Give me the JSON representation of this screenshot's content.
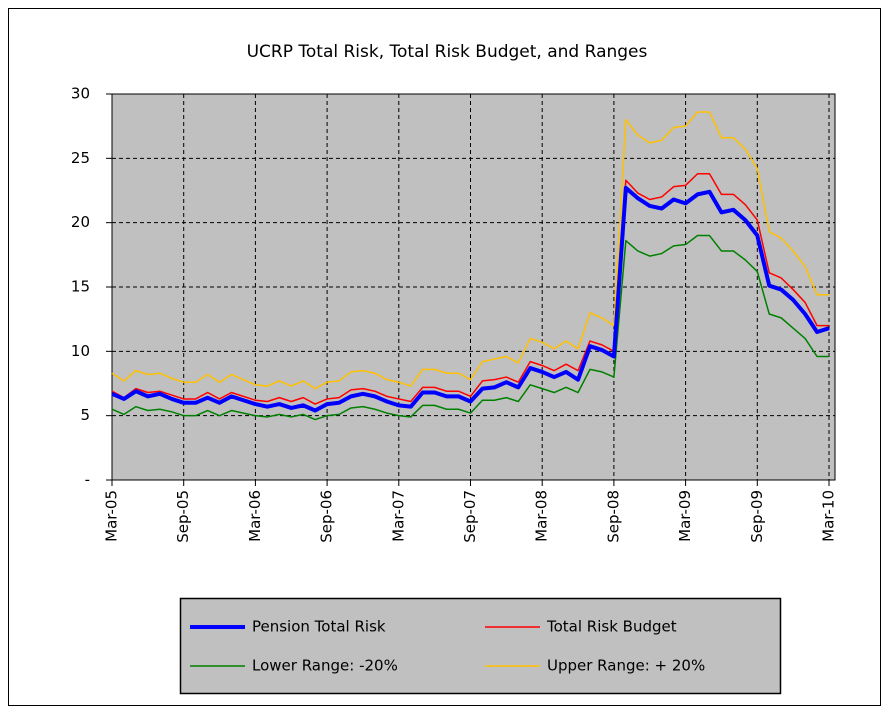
{
  "chart_data": {
    "type": "line",
    "title": "UCRP Total Risk, Total Risk Budget, and Ranges",
    "categories": [
      "Mar-05",
      null,
      null,
      null,
      null,
      null,
      "Sep-05",
      null,
      null,
      null,
      null,
      null,
      "Mar-06",
      null,
      null,
      null,
      null,
      null,
      "Sep-06",
      null,
      null,
      null,
      null,
      null,
      "Mar-07",
      null,
      null,
      null,
      null,
      null,
      "Sep-07",
      null,
      null,
      null,
      null,
      null,
      "Mar-08",
      null,
      null,
      null,
      null,
      null,
      "Sep-08",
      null,
      null,
      null,
      null,
      null,
      "Mar-09",
      null,
      null,
      null,
      null,
      null,
      "Sep-09",
      null,
      null,
      null,
      null,
      null,
      "Mar-10"
    ],
    "series": [
      {
        "name": "Pension Total Risk",
        "color": "#0000ff",
        "width": 4,
        "values": [
          6.7,
          6.3,
          6.9,
          6.5,
          6.7,
          6.3,
          6.0,
          6.0,
          6.4,
          6.0,
          6.5,
          6.2,
          5.9,
          5.7,
          5.9,
          5.6,
          5.8,
          5.4,
          5.9,
          6.0,
          6.5,
          6.7,
          6.5,
          6.1,
          5.8,
          5.7,
          6.8,
          6.8,
          6.5,
          6.5,
          6.1,
          7.1,
          7.2,
          7.6,
          7.2,
          8.7,
          8.4,
          8.0,
          8.4,
          7.8,
          10.4,
          10.1,
          9.6,
          22.7,
          21.9,
          21.3,
          21.1,
          21.8,
          21.5,
          22.2,
          22.4,
          20.8,
          21.0,
          20.2,
          19.0,
          15.1,
          14.8,
          14.0,
          12.9,
          11.5,
          11.8
        ]
      },
      {
        "name": "Total Risk Budget",
        "color": "#ff0000",
        "width": 1.5,
        "values": [
          6.9,
          6.4,
          7.1,
          6.8,
          6.9,
          6.6,
          6.3,
          6.3,
          6.8,
          6.3,
          6.8,
          6.5,
          6.2,
          6.1,
          6.4,
          6.1,
          6.4,
          5.9,
          6.3,
          6.4,
          7.0,
          7.1,
          6.9,
          6.5,
          6.3,
          6.1,
          7.2,
          7.2,
          6.9,
          6.9,
          6.5,
          7.7,
          7.8,
          8.0,
          7.6,
          9.2,
          8.9,
          8.5,
          9.0,
          8.5,
          10.8,
          10.5,
          10.0,
          23.3,
          22.3,
          21.8,
          22.0,
          22.8,
          22.9,
          23.8,
          23.8,
          22.2,
          22.2,
          21.4,
          20.2,
          16.1,
          15.7,
          14.8,
          13.8,
          12.0,
          12.0
        ]
      },
      {
        "name": "Lower Range: -20%",
        "color": "#008000",
        "width": 1.5,
        "values": [
          5.5,
          5.1,
          5.7,
          5.4,
          5.5,
          5.3,
          5.0,
          5.0,
          5.4,
          5.0,
          5.4,
          5.2,
          5.0,
          4.9,
          5.1,
          4.9,
          5.1,
          4.7,
          5.0,
          5.1,
          5.6,
          5.7,
          5.5,
          5.2,
          5.0,
          4.9,
          5.8,
          5.8,
          5.5,
          5.5,
          5.2,
          6.2,
          6.2,
          6.4,
          6.1,
          7.4,
          7.1,
          6.8,
          7.2,
          6.8,
          8.6,
          8.4,
          8.0,
          18.6,
          17.8,
          17.4,
          17.6,
          18.2,
          18.3,
          19.0,
          19.0,
          17.8,
          17.8,
          17.1,
          16.2,
          12.9,
          12.6,
          11.8,
          11.0,
          9.6,
          9.6
        ]
      },
      {
        "name": "Upper Range: + 20%",
        "color": "#ffc000",
        "width": 1.5,
        "values": [
          8.3,
          7.7,
          8.5,
          8.2,
          8.3,
          7.9,
          7.6,
          7.6,
          8.2,
          7.6,
          8.2,
          7.8,
          7.4,
          7.3,
          7.7,
          7.3,
          7.7,
          7.1,
          7.6,
          7.7,
          8.4,
          8.5,
          8.3,
          7.8,
          7.6,
          7.3,
          8.6,
          8.6,
          8.3,
          8.3,
          7.8,
          9.2,
          9.4,
          9.6,
          9.1,
          11.0,
          10.7,
          10.2,
          10.8,
          10.2,
          13.0,
          12.6,
          12.0,
          28.0,
          26.8,
          26.2,
          26.4,
          27.4,
          27.5,
          28.6,
          28.6,
          26.6,
          26.6,
          25.7,
          24.2,
          19.3,
          18.8,
          17.8,
          16.6,
          14.4,
          14.4
        ]
      }
    ],
    "ylim": [
      0,
      30
    ],
    "yticks": [
      {
        "value": 0,
        "label": "-"
      },
      5,
      10,
      15,
      20,
      25,
      30
    ],
    "grid": true
  }
}
